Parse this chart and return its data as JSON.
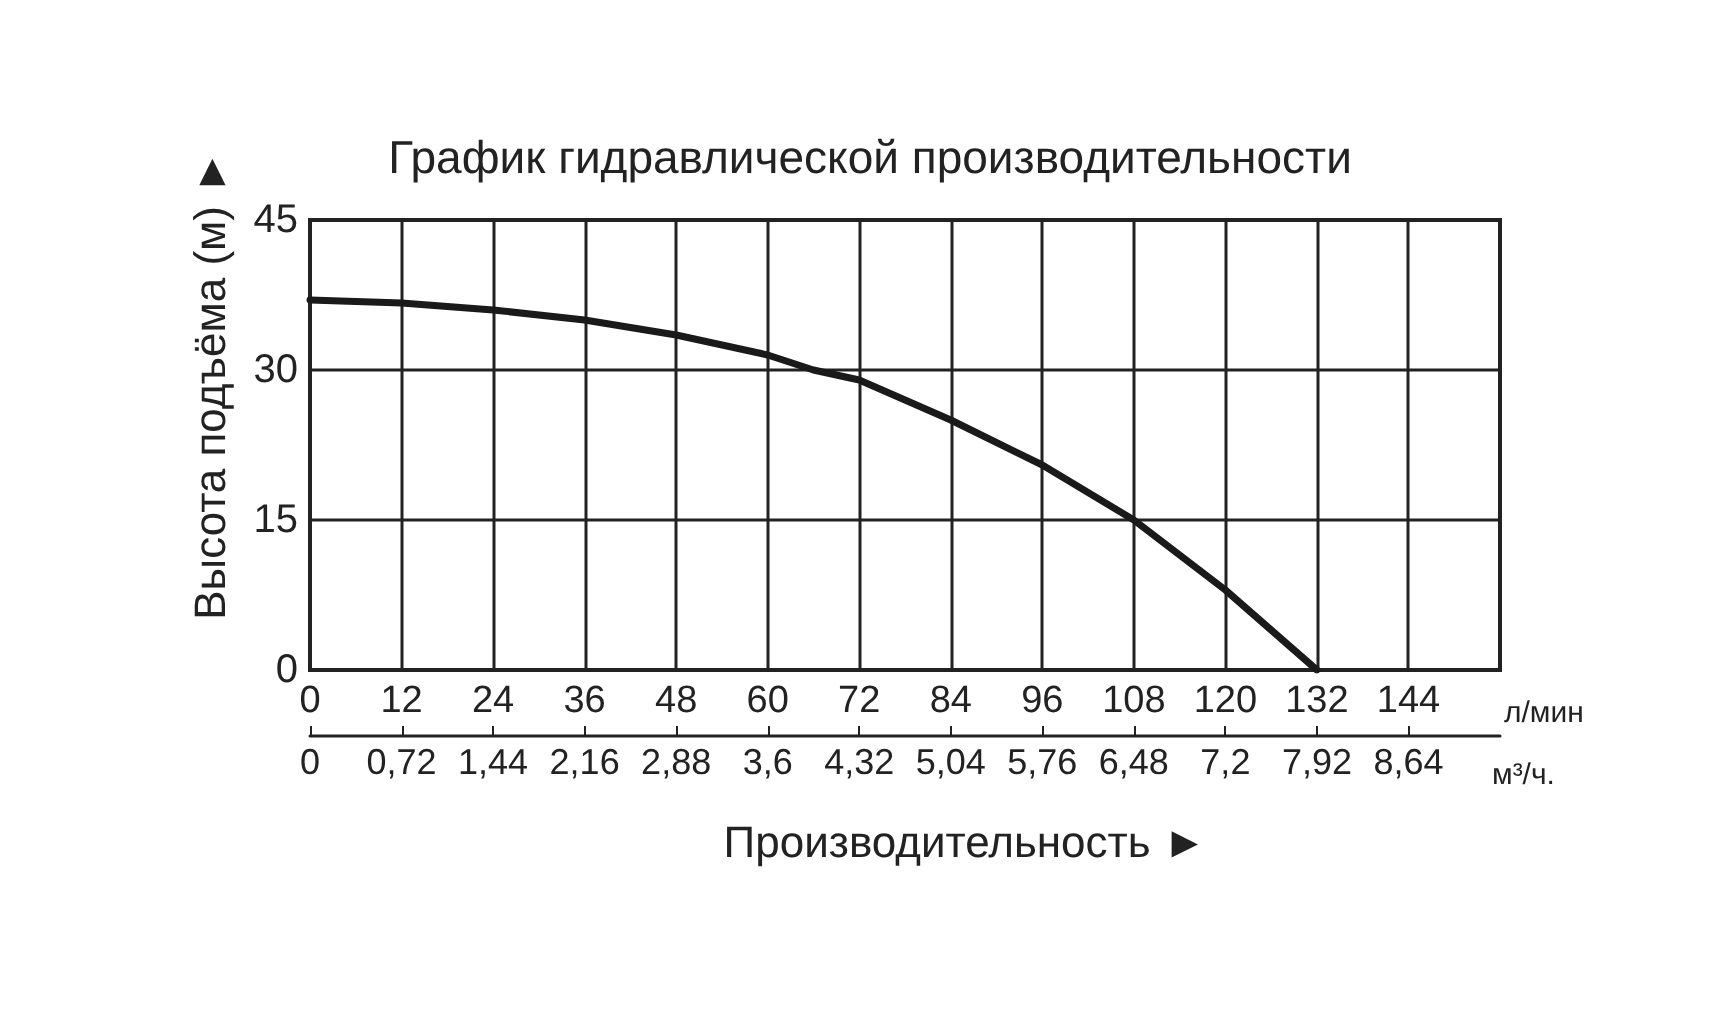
{
  "chart_data": {
    "type": "line",
    "title": "График гидравлической производительности",
    "xlabel": "Производительность ►",
    "ylabel": "Высота подъёма (м) ►",
    "x": [
      0,
      12,
      24,
      36,
      48,
      60,
      66,
      72,
      84,
      96,
      108,
      120,
      132
    ],
    "series": [
      {
        "color": "#1a1a1a",
        "values": [
          37,
          36.7,
          36,
          35,
          33.5,
          31.5,
          30,
          29,
          25,
          20.5,
          15,
          8,
          0
        ]
      }
    ],
    "xlim": [
      0,
      156
    ],
    "xticks": [
      0,
      12,
      24,
      36,
      48,
      60,
      72,
      84,
      96,
      108,
      120,
      132,
      144
    ],
    "x2lim": [
      0,
      9.36
    ],
    "x2ticks": [
      0,
      {
        "value": 0.72,
        "label": "0,72"
      },
      {
        "value": 1.44,
        "label": "1,44"
      },
      {
        "value": 2.16,
        "label": "2,16"
      },
      {
        "value": 2.88,
        "label": "2,88"
      },
      {
        "value": 3.6,
        "label": "3,6"
      },
      {
        "value": 4.32,
        "label": "4,32"
      },
      {
        "value": 5.04,
        "label": "5,04"
      },
      {
        "value": 5.76,
        "label": "5,76"
      },
      {
        "value": 6.48,
        "label": "6,48"
      },
      {
        "value": 7.2,
        "label": "7,2"
      },
      {
        "value": 7.92,
        "label": "7,92"
      },
      {
        "value": 8.64,
        "label": "8,64"
      }
    ],
    "ylim": [
      0,
      45
    ],
    "yticks": [
      0,
      15,
      30,
      45
    ],
    "annotations": [
      "л/мин",
      "м³/ч."
    ],
    "grid": true,
    "marker": "none",
    "line_style": "solid"
  }
}
